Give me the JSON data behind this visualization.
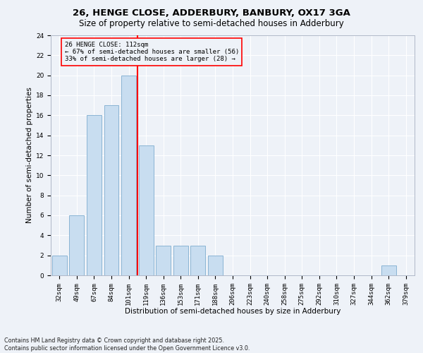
{
  "title1": "26, HENGE CLOSE, ADDERBURY, BANBURY, OX17 3GA",
  "title2": "Size of property relative to semi-detached houses in Adderbury",
  "xlabel": "Distribution of semi-detached houses by size in Adderbury",
  "ylabel": "Number of semi-detached properties",
  "categories": [
    "32sqm",
    "49sqm",
    "67sqm",
    "84sqm",
    "101sqm",
    "119sqm",
    "136sqm",
    "153sqm",
    "171sqm",
    "188sqm",
    "206sqm",
    "223sqm",
    "240sqm",
    "258sqm",
    "275sqm",
    "292sqm",
    "310sqm",
    "327sqm",
    "344sqm",
    "362sqm",
    "379sqm"
  ],
  "values": [
    2,
    6,
    16,
    17,
    20,
    13,
    3,
    3,
    3,
    2,
    0,
    0,
    0,
    0,
    0,
    0,
    0,
    0,
    0,
    1,
    0
  ],
  "bar_color": "#c8ddf0",
  "bar_edgecolor": "#8ab4d4",
  "vline_x": 4.5,
  "vline_color": "red",
  "annotation_line1": "26 HENGE CLOSE: 112sqm",
  "annotation_line2": "← 67% of semi-detached houses are smaller (56)",
  "annotation_line3": "33% of semi-detached houses are larger (28) →",
  "annotation_box_color": "red",
  "ylim": [
    0,
    24
  ],
  "yticks": [
    0,
    2,
    4,
    6,
    8,
    10,
    12,
    14,
    16,
    18,
    20,
    22,
    24
  ],
  "footnote1": "Contains HM Land Registry data © Crown copyright and database right 2025.",
  "footnote2": "Contains public sector information licensed under the Open Government Licence v3.0.",
  "bg_color": "#eef2f8",
  "grid_color": "#ffffff",
  "title_fontsize": 9.5,
  "subtitle_fontsize": 8.5,
  "xlabel_fontsize": 7.5,
  "ylabel_fontsize": 7.5,
  "tick_fontsize": 6.5,
  "annot_fontsize": 6.5,
  "footnote_fontsize": 5.8
}
